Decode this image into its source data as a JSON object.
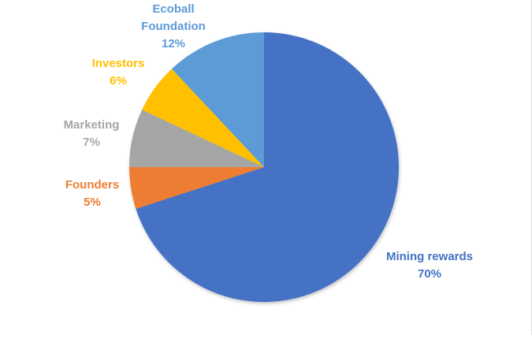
{
  "chart_data": {
    "type": "pie",
    "title": "",
    "start_angle_deg": 0,
    "direction": "clockwise",
    "slices": [
      {
        "label": "Mining rewards",
        "value": 70,
        "value_label": "70%",
        "color": "#4472C4"
      },
      {
        "label": "Founders",
        "value": 5,
        "value_label": "5%",
        "color": "#ED7D31"
      },
      {
        "label": "Marketing",
        "value": 7,
        "value_label": "7%",
        "color": "#A5A5A5"
      },
      {
        "label": "Investors",
        "value": 6,
        "value_label": "6%",
        "color": "#FFC000"
      },
      {
        "label": "Ecoball Foundation",
        "value": 12,
        "value_label": "12%",
        "color": "#5B9BD5"
      }
    ],
    "legend": "none",
    "data_labels": "outside, category name and percentage, colored like slice"
  }
}
